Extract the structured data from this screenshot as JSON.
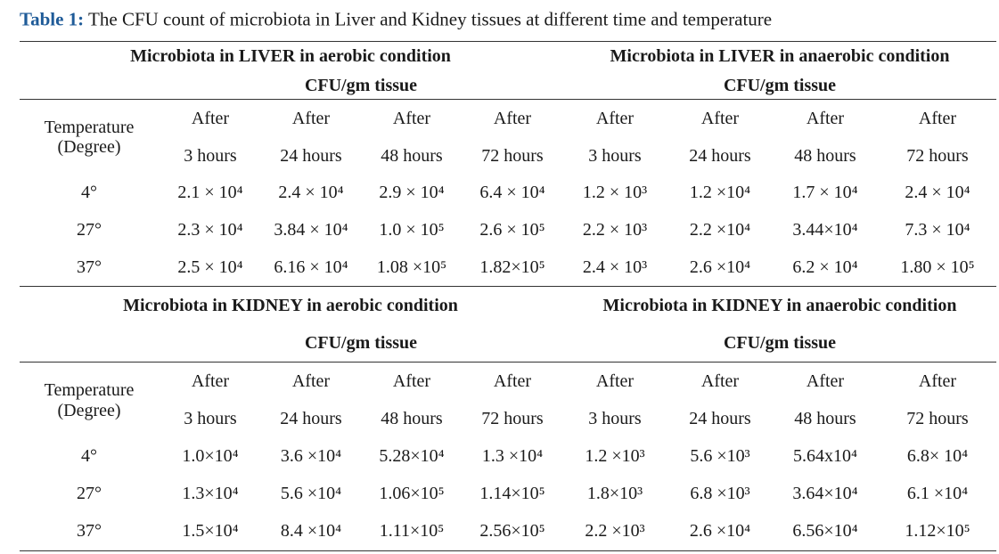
{
  "caption": {
    "label": "Table 1:",
    "text": "The CFU count of microbiota in Liver and Kidney tissues at different time and temperature"
  },
  "colors": {
    "caption_label": "#1f5b98",
    "text": "#1a1a1a",
    "rule": "#333333"
  },
  "sections": [
    {
      "groups": [
        {
          "title": "Microbiota in LIVER in aerobic condition",
          "unit": "CFU/gm tissue"
        },
        {
          "title": "Microbiota in LIVER in anaerobic condition",
          "unit": "CFU/gm tissue"
        }
      ],
      "row_header": {
        "line1": "Temperature",
        "line2": "(Degree)"
      },
      "columns": [
        {
          "top": "After",
          "bottom": "3 hours"
        },
        {
          "top": "After",
          "bottom": "24 hours"
        },
        {
          "top": "After",
          "bottom": "48 hours"
        },
        {
          "top": "After",
          "bottom": "72 hours"
        },
        {
          "top": "After",
          "bottom": "3 hours"
        },
        {
          "top": "After",
          "bottom": "24 hours"
        },
        {
          "top": "After",
          "bottom": "48 hours"
        },
        {
          "top": "After",
          "bottom": "72 hours"
        }
      ],
      "rows": [
        {
          "temperature": "4°",
          "values": [
            "2.1 × 10⁴",
            "2.4 × 10⁴",
            "2.9 × 10⁴",
            "6.4 × 10⁴",
            "1.2 × 10³",
            "1.2 ×10⁴",
            "1.7 × 10⁴",
            "2.4 × 10⁴"
          ]
        },
        {
          "temperature": "27°",
          "values": [
            "2.3 × 10⁴",
            "3.84 × 10⁴",
            "1.0 × 10⁵",
            "2.6 × 10⁵",
            "2.2 × 10³",
            "2.2 ×10⁴",
            "3.44×10⁴",
            "7.3 × 10⁴"
          ]
        },
        {
          "temperature": "37°",
          "values": [
            "2.5 × 10⁴",
            "6.16 × 10⁴",
            "1.08 ×10⁵",
            "1.82×10⁵",
            "2.4 × 10³",
            "2.6 ×10⁴",
            "6.2 × 10⁴",
            "1.80 × 10⁵"
          ]
        }
      ]
    },
    {
      "groups": [
        {
          "title": "Microbiota in KIDNEY in aerobic condition",
          "unit": "CFU/gm tissue"
        },
        {
          "title": "Microbiota in KIDNEY in anaerobic condition",
          "unit": "CFU/gm tissue"
        }
      ],
      "row_header": {
        "line1": "Temperature",
        "line2": "(Degree)"
      },
      "columns": [
        {
          "top": "After",
          "bottom": "3 hours"
        },
        {
          "top": "After",
          "bottom": "24 hours"
        },
        {
          "top": "After",
          "bottom": "48 hours"
        },
        {
          "top": "After",
          "bottom": "72 hours"
        },
        {
          "top": "After",
          "bottom": "3 hours"
        },
        {
          "top": "After",
          "bottom": "24 hours"
        },
        {
          "top": "After",
          "bottom": "48 hours"
        },
        {
          "top": "After",
          "bottom": "72 hours"
        }
      ],
      "rows": [
        {
          "temperature": "4°",
          "values": [
            "1.0×10⁴",
            "3.6 ×10⁴",
            "5.28×10⁴",
            "1.3 ×10⁴",
            "1.2 ×10³",
            "5.6 ×10³",
            "5.64x10⁴",
            "6.8× 10⁴"
          ]
        },
        {
          "temperature": "27°",
          "values": [
            "1.3×10⁴",
            "5.6 ×10⁴",
            "1.06×10⁵",
            "1.14×10⁵",
            "1.8×10³",
            "6.8 ×10³",
            "3.64×10⁴",
            "6.1 ×10⁴"
          ]
        },
        {
          "temperature": "37°",
          "values": [
            "1.5×10⁴",
            "8.4 ×10⁴",
            "1.11×10⁵",
            "2.56×10⁵",
            "2.2 ×10³",
            "2.6 ×10⁴",
            "6.56×10⁴",
            "1.12×10⁵"
          ]
        }
      ]
    }
  ]
}
